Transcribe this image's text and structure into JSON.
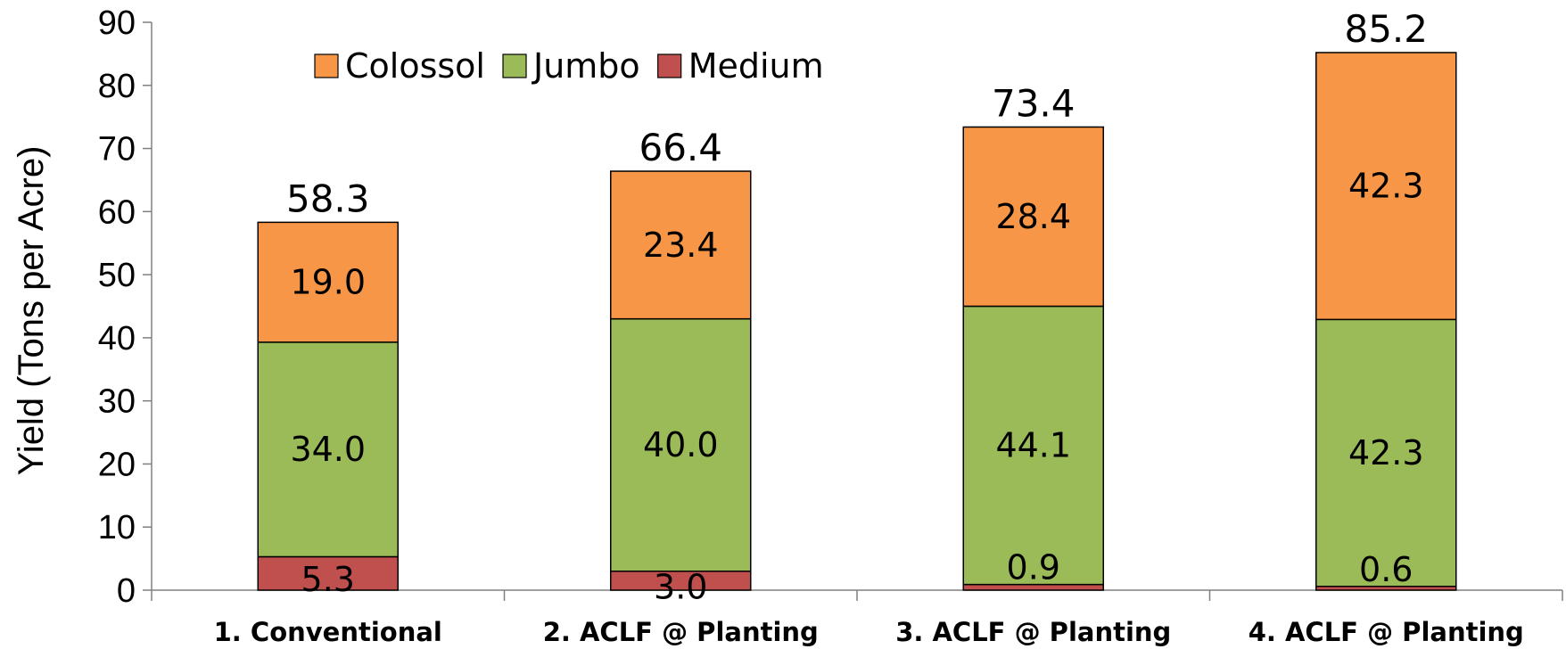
{
  "chart_data": {
    "type": "bar",
    "stacked": true,
    "title": "",
    "xlabel": "",
    "ylabel": "Yield (Tons per Acre)",
    "ylim": [
      0,
      90
    ],
    "yticks": [
      0,
      10,
      20,
      30,
      40,
      50,
      60,
      70,
      80,
      90
    ],
    "grid": false,
    "legend_position": "top-left",
    "categories": [
      "1. Conventional",
      "2. ACLF @ Planting",
      "3. ACLF @ Planting",
      "4. ACLF @ Planting"
    ],
    "series": [
      {
        "name": "Medium",
        "color": "#c0504d",
        "values": [
          5.3,
          3.0,
          0.9,
          0.6
        ],
        "labels": [
          "5.3",
          "3.0",
          "0.9",
          "0.6"
        ]
      },
      {
        "name": "Jumbo",
        "color": "#9bbb59",
        "values": [
          34.0,
          40.0,
          44.1,
          42.3
        ],
        "labels": [
          "34.0",
          "40.0",
          "44.1",
          "42.3"
        ]
      },
      {
        "name": "Colossol",
        "color": "#f79646",
        "values": [
          19.0,
          23.4,
          28.4,
          42.3
        ],
        "labels": [
          "19.0",
          "23.4",
          "28.4",
          "42.3"
        ]
      }
    ],
    "totals": [
      58.3,
      66.4,
      73.4,
      85.2
    ],
    "total_labels": [
      "58.3",
      "66.4",
      "73.4",
      "85.2"
    ],
    "legend_order": [
      "Colossol",
      "Jumbo",
      "Medium"
    ]
  }
}
